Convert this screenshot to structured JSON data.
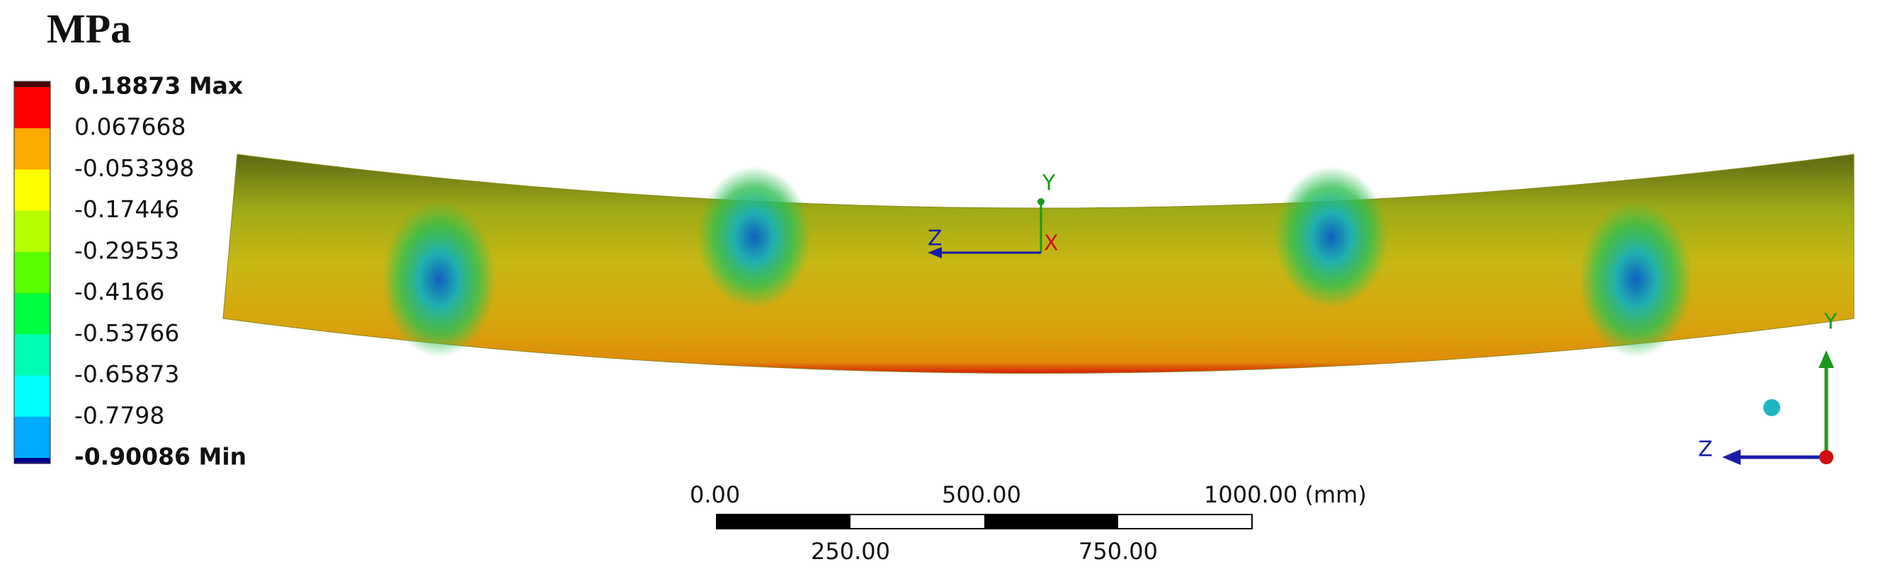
{
  "unit": "MPa",
  "legend": {
    "labels": [
      "0.18873 Max",
      "0.067668",
      "-0.053398",
      "-0.17446",
      "-0.29553",
      "-0.4166",
      "-0.53766",
      "-0.65873",
      "-0.7798",
      "-0.90086 Min"
    ],
    "colors": [
      "#ff0000",
      "#ffaa00",
      "#ffff00",
      "#b4ff00",
      "#5aff00",
      "#00ff3c",
      "#00ffb4",
      "#00ffff",
      "#00aaff",
      "#0000ff"
    ]
  },
  "scale_bar": {
    "labels": [
      "0.00",
      "500.00",
      "1000.00 (mm)",
      "250.00",
      "750.00"
    ]
  },
  "triad_center": {
    "y": "Y",
    "z": "Z",
    "x": "X"
  },
  "triad_corner": {
    "y": "Y",
    "z": "Z"
  }
}
